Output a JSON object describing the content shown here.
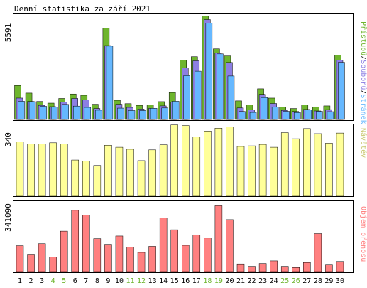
{
  "title": "Denní statistika za září 2021",
  "colors": {
    "background": "#ffffff",
    "frame": "#000000",
    "hits": "#6eb52d",
    "files": "#8c7fe3",
    "pages": "#66b8ff",
    "visits": "#ffff99",
    "kbytes": "#ff8080",
    "weekend_label": "#6eb52d",
    "weekday_label": "#000000"
  },
  "chart_data": [
    {
      "type": "bar",
      "title": "Denní statistika za září 2021",
      "panel": "requests",
      "ymax_label": "5591",
      "ylim": [
        0,
        5591
      ],
      "categories": [
        "1",
        "2",
        "3",
        "4",
        "5",
        "6",
        "7",
        "8",
        "9",
        "10",
        "11",
        "12",
        "13",
        "14",
        "15",
        "16",
        "17",
        "18",
        "19",
        "20",
        "21",
        "22",
        "23",
        "24",
        "25",
        "26",
        "27",
        "28",
        "29",
        "30"
      ],
      "legend_parts": [
        "Přístupů",
        "Souborů",
        "Stránek"
      ],
      "legend_separator": "/",
      "series": [
        {
          "name": "Přístupů",
          "color": "#6eb52d",
          "values": [
            1830,
            1420,
            970,
            880,
            1130,
            1370,
            1300,
            820,
            4930,
            1030,
            850,
            760,
            780,
            960,
            1450,
            3190,
            3380,
            5570,
            3800,
            3420,
            1000,
            780,
            1650,
            1150,
            670,
            590,
            780,
            680,
            730,
            3460
          ]
        },
        {
          "name": "Souborů",
          "color": "#8c7fe3",
          "values": [
            1150,
            970,
            760,
            690,
            930,
            1130,
            1050,
            590,
            3980,
            820,
            650,
            560,
            600,
            730,
            950,
            2780,
            3160,
            5380,
            3580,
            3070,
            620,
            510,
            1350,
            860,
            490,
            430,
            540,
            460,
            530,
            3200
          ]
        },
        {
          "name": "Stránek",
          "color": "#66b8ff",
          "values": [
            980,
            960,
            710,
            660,
            810,
            720,
            650,
            500,
            3950,
            610,
            480,
            480,
            600,
            620,
            980,
            2360,
            2600,
            5190,
            3530,
            2340,
            430,
            380,
            1180,
            670,
            440,
            370,
            520,
            440,
            420,
            3080
          ]
        }
      ]
    },
    {
      "type": "bar",
      "panel": "visits",
      "ymax_label": "340",
      "ylim": [
        0,
        340
      ],
      "axis_label": "Návštěv",
      "categories": [
        "1",
        "2",
        "3",
        "4",
        "5",
        "6",
        "7",
        "8",
        "9",
        "10",
        "11",
        "12",
        "13",
        "14",
        "15",
        "16",
        "17",
        "18",
        "19",
        "20",
        "21",
        "22",
        "23",
        "24",
        "25",
        "26",
        "27",
        "28",
        "29",
        "30"
      ],
      "series": [
        {
          "name": "Návštěv",
          "color": "#ffff99",
          "values": [
            265,
            255,
            255,
            260,
            255,
            175,
            170,
            148,
            248,
            238,
            228,
            172,
            225,
            250,
            348,
            345,
            290,
            318,
            332,
            338,
            242,
            245,
            252,
            238,
            310,
            280,
            330,
            305,
            258,
            308
          ]
        }
      ]
    },
    {
      "type": "bar",
      "panel": "kbytes",
      "ymax_label": "341090",
      "ylim": [
        0,
        341090
      ],
      "axis_label": "Objem přenosu",
      "categories": [
        "1",
        "2",
        "3",
        "4",
        "5",
        "6",
        "7",
        "8",
        "9",
        "10",
        "11",
        "12",
        "13",
        "14",
        "15",
        "16",
        "17",
        "18",
        "19",
        "20",
        "21",
        "22",
        "23",
        "24",
        "25",
        "26",
        "27",
        "28",
        "29",
        "30"
      ],
      "series": [
        {
          "name": "Objem přenosu",
          "color": "#ff8080",
          "values": [
            128000,
            86000,
            138000,
            72000,
            200000,
            303000,
            280000,
            163000,
            135000,
            176000,
            122000,
            95000,
            125000,
            265000,
            207000,
            130000,
            182000,
            166000,
            329000,
            257000,
            38000,
            26000,
            40000,
            53000,
            26000,
            20000,
            45000,
            188000,
            36000,
            50000
          ]
        }
      ]
    }
  ]
}
